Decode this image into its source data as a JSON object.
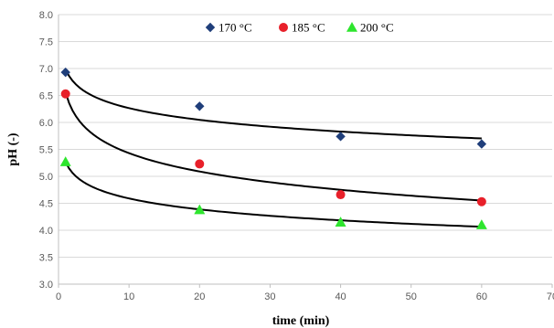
{
  "chart_data": {
    "type": "scatter",
    "xlabel": "time (min)",
    "ylabel": "pH (-)",
    "xlim": [
      0,
      70
    ],
    "ylim": [
      3.0,
      8.0
    ],
    "xticks": [
      0,
      10,
      20,
      30,
      40,
      50,
      60,
      70
    ],
    "yticks": [
      3.0,
      3.5,
      4.0,
      4.5,
      5.0,
      5.5,
      6.0,
      6.5,
      7.0,
      7.5,
      8.0
    ],
    "xtick_labels": [
      "0",
      "10",
      "20",
      "30",
      "40",
      "50",
      "60",
      "70"
    ],
    "ytick_labels": [
      "3.0",
      "3.5",
      "4.0",
      "4.5",
      "5.0",
      "5.5",
      "6.0",
      "6.5",
      "7.0",
      "7.5",
      "8.0"
    ],
    "grid": "horizontal",
    "legend_position": "top-center",
    "series": [
      {
        "name": "170 °C",
        "marker": "diamond",
        "color": "#1f3e7a",
        "x": [
          1,
          20,
          40,
          60
        ],
        "y": [
          6.93,
          6.3,
          5.74,
          5.6
        ],
        "trendline": "logarithmic"
      },
      {
        "name": "185 °C",
        "marker": "circle",
        "color": "#e8202a",
        "x": [
          1,
          20,
          40,
          60
        ],
        "y": [
          6.53,
          5.23,
          4.66,
          4.53
        ],
        "trendline": "logarithmic"
      },
      {
        "name": "200 °C",
        "marker": "triangle",
        "color": "#2ee52e",
        "x": [
          1,
          20,
          40,
          60
        ],
        "y": [
          5.27,
          4.38,
          4.15,
          4.1
        ],
        "trendline": "logarithmic"
      }
    ],
    "trendline_color": "#000000"
  }
}
